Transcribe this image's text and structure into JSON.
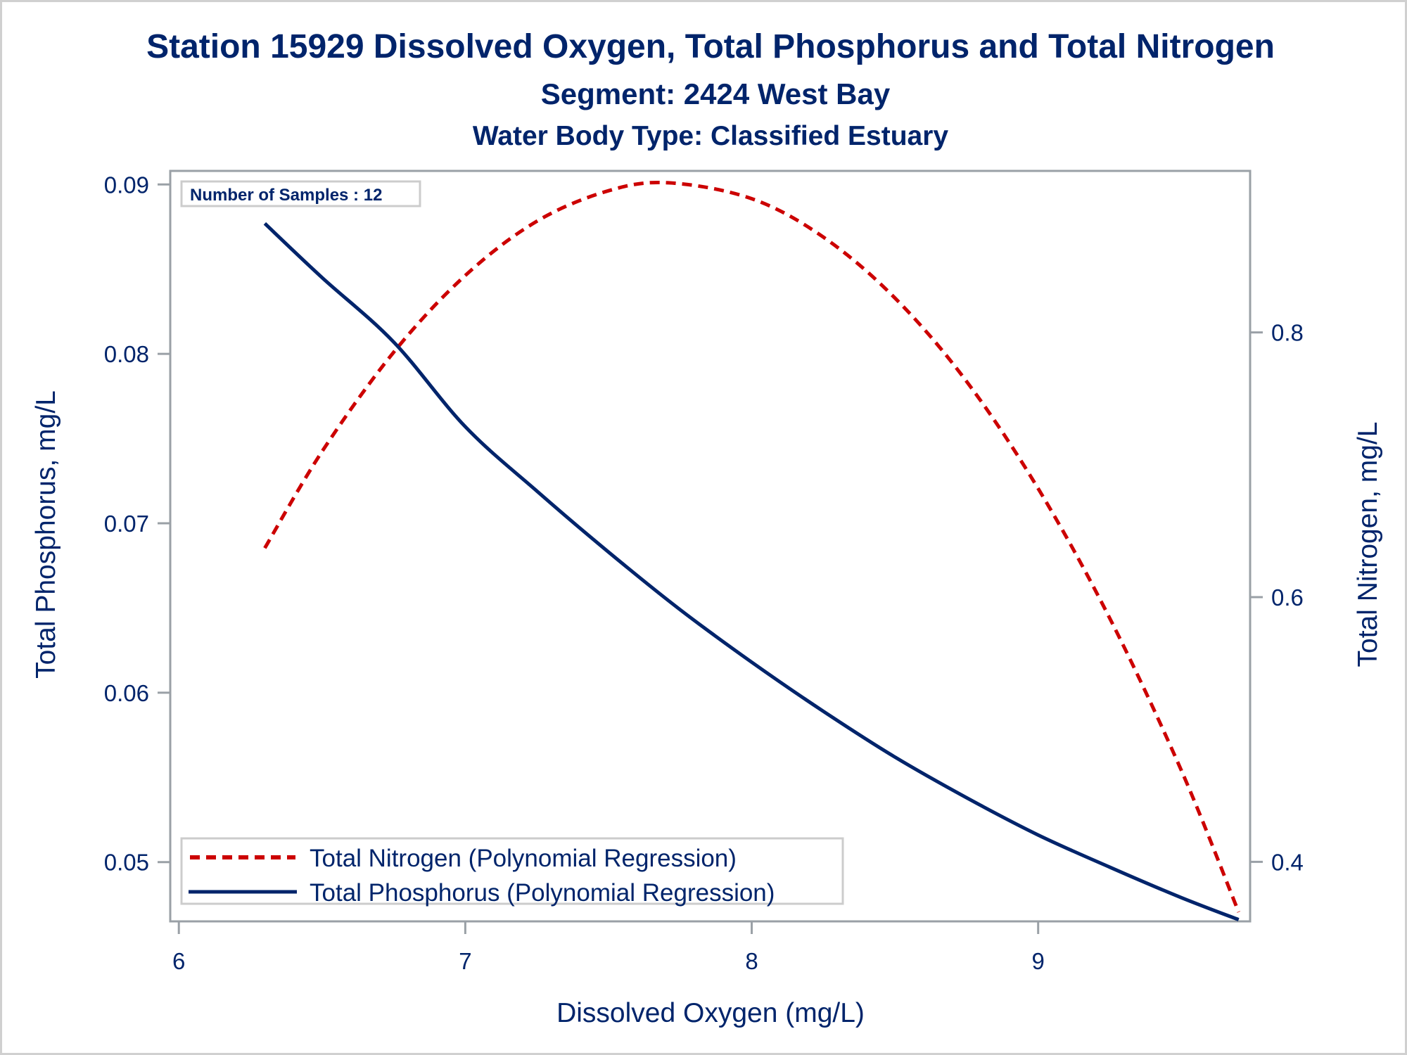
{
  "chart_data": {
    "type": "line",
    "title": "Station 15929  Dissolved Oxygen, Total Phosphorus and Total Nitrogen",
    "subtitle": "Segment: 2424  West Bay",
    "subtitle2": "Water Body Type: Classified Estuary",
    "xlabel": "Dissolved Oxygen (mg/L)",
    "ylabel": "Total Phosphorus, mg/L",
    "y2label": "Total Nitrogen, mg/L",
    "xlim": [
      5.97,
      9.74
    ],
    "ylim": [
      0.0465,
      0.0908
    ],
    "y2lim": [
      0.355,
      0.922
    ],
    "x_ticks": [
      "6",
      "7",
      "8",
      "9"
    ],
    "x_tick_values": [
      6,
      7,
      8,
      9
    ],
    "y_ticks": [
      "0.05",
      "0.06",
      "0.07",
      "0.08",
      "0.09"
    ],
    "y_tick_values": [
      0.05,
      0.06,
      0.07,
      0.08,
      0.09
    ],
    "y2_ticks": [
      "0.4",
      "0.6",
      "0.8"
    ],
    "y2_tick_values": [
      0.4,
      0.6,
      0.8
    ],
    "grid": false,
    "annotation": "Number of Samples : 12",
    "legend_position": "bottom-left",
    "series": [
      {
        "name": "Total Nitrogen (Polynomial Regression)",
        "axis": "right",
        "style": "dashed",
        "color": "#cc0000",
        "x": [
          6.3,
          6.5,
          6.75,
          7.0,
          7.25,
          7.5,
          7.71,
          8.0,
          8.25,
          8.5,
          8.75,
          9.0,
          9.25,
          9.5,
          9.7
        ],
        "y": [
          0.637,
          0.71,
          0.785,
          0.843,
          0.884,
          0.907,
          0.913,
          0.901,
          0.872,
          0.826,
          0.763,
          0.682,
          0.584,
          0.469,
          0.362
        ]
      },
      {
        "name": "Total Phosphorus (Polynomial Regression)",
        "axis": "left",
        "style": "solid",
        "color": "#00246b",
        "x": [
          6.3,
          6.5,
          6.75,
          7.0,
          7.25,
          7.5,
          7.75,
          8.0,
          8.25,
          8.5,
          8.75,
          9.0,
          9.25,
          9.5,
          9.7
        ],
        "y": [
          0.0877,
          0.0845,
          0.0807,
          0.0757,
          0.0719,
          0.0683,
          0.0649,
          0.0618,
          0.0589,
          0.0562,
          0.0538,
          0.0516,
          0.0497,
          0.0479,
          0.0466
        ]
      }
    ]
  }
}
